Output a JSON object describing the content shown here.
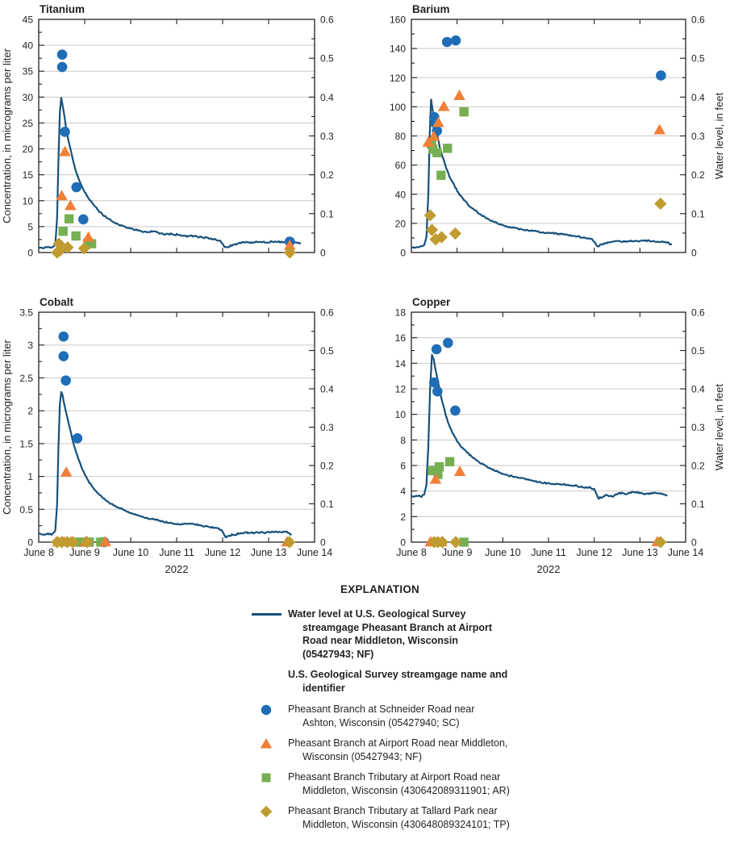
{
  "figure": {
    "explanation_title": "EXPLANATION",
    "water_level_legend": "Water level at U.S. Geological Survey streamgage Pheasant Branch at Airport Road near Middleton, Wisconsin (05427943; NF)",
    "streamgage_header": "U.S. Geological Survey streamgage name and identifier",
    "year_label": "2022"
  },
  "colors": {
    "water_line": "#16507a",
    "grid": "#c9c9c9",
    "axis": "#231f20",
    "text": "#231f20"
  },
  "sites": [
    {
      "key": "SC",
      "shape": "circle",
      "color": "#1f6db6",
      "label": "Pheasant Branch at Schneider Road near Ashton, Wisconsin (05427940; SC)"
    },
    {
      "key": "NF",
      "shape": "triangle",
      "color": "#f08038",
      "label": "Pheasant Branch at Airport Road near Middleton, Wisconsin (05427943; NF)"
    },
    {
      "key": "AR",
      "shape": "square",
      "color": "#76af52",
      "label": "Pheasant Branch Tributary at Airport Road near Middleton, Wisconsin (430642089311901; AR)"
    },
    {
      "key": "TP",
      "shape": "diamond",
      "color": "#bf9b30",
      "label": "Pheasant Branch Tributary at Tallard Park near Middleton, Wisconsin (430648089324101; TP)"
    }
  ],
  "axes": {
    "x_tick_labels": [
      "June 8",
      "June 9",
      "June 10",
      "June 11",
      "June 12",
      "June 13",
      "June 14"
    ],
    "x_range_days": [
      0,
      6
    ],
    "y_left_label": "Concentration, in micrograms per liter",
    "y_right_label": "Water level, in feet",
    "y_right": {
      "min": 0,
      "max": 0.6,
      "step": 0.1
    }
  },
  "chart_data": [
    {
      "type": "line+scatter",
      "title": "Titanium",
      "ylim": [
        0,
        45
      ],
      "ystep": 5,
      "scatter": {
        "SC": [
          [
            0.51,
            38.2
          ],
          [
            0.51,
            35.8
          ],
          [
            0.57,
            23.3
          ],
          [
            0.82,
            12.6
          ],
          [
            0.97,
            6.4
          ],
          [
            5.46,
            2.1
          ]
        ],
        "NF": [
          [
            0.5,
            10.9
          ],
          [
            0.57,
            19.4
          ],
          [
            0.69,
            9.0
          ],
          [
            1.08,
            2.9
          ],
          [
            5.46,
            1.3
          ]
        ],
        "AR": [
          [
            0.53,
            4.1
          ],
          [
            0.66,
            6.5
          ],
          [
            0.81,
            3.2
          ],
          [
            1.07,
            1.9
          ],
          [
            1.15,
            1.7
          ]
        ],
        "TP": [
          [
            0.4,
            0.0
          ],
          [
            0.44,
            1.7
          ],
          [
            0.47,
            0.4
          ],
          [
            0.63,
            1.0
          ],
          [
            0.99,
            0.8
          ],
          [
            5.46,
            0.0
          ]
        ]
      },
      "water_level_ft": [
        [
          0,
          0.013
        ],
        [
          0.1,
          0.012
        ],
        [
          0.2,
          0.014
        ],
        [
          0.3,
          0.013
        ],
        [
          0.36,
          0.02
        ],
        [
          0.4,
          0.09
        ],
        [
          0.43,
          0.24
        ],
        [
          0.46,
          0.36
        ],
        [
          0.49,
          0.396
        ],
        [
          0.52,
          0.378
        ],
        [
          0.56,
          0.35
        ],
        [
          0.6,
          0.315
        ],
        [
          0.65,
          0.287
        ],
        [
          0.7,
          0.262
        ],
        [
          0.75,
          0.235
        ],
        [
          0.8,
          0.212
        ],
        [
          0.86,
          0.192
        ],
        [
          0.93,
          0.172
        ],
        [
          1.0,
          0.156
        ],
        [
          1.1,
          0.137
        ],
        [
          1.2,
          0.121
        ],
        [
          1.32,
          0.105
        ],
        [
          1.45,
          0.092
        ],
        [
          1.6,
          0.08
        ],
        [
          1.75,
          0.071
        ],
        [
          1.9,
          0.065
        ],
        [
          2.05,
          0.06
        ],
        [
          2.2,
          0.056
        ],
        [
          2.35,
          0.052
        ],
        [
          2.5,
          0.055
        ],
        [
          2.6,
          0.05
        ],
        [
          2.75,
          0.047
        ],
        [
          2.9,
          0.048
        ],
        [
          3.05,
          0.045
        ],
        [
          3.2,
          0.042
        ],
        [
          3.35,
          0.043
        ],
        [
          3.5,
          0.04
        ],
        [
          3.65,
          0.038
        ],
        [
          3.8,
          0.035
        ],
        [
          3.95,
          0.03
        ],
        [
          4.05,
          0.012
        ],
        [
          4.2,
          0.018
        ],
        [
          4.35,
          0.024
        ],
        [
          4.5,
          0.027
        ],
        [
          4.65,
          0.025
        ],
        [
          4.8,
          0.028
        ],
        [
          4.95,
          0.026
        ],
        [
          5.1,
          0.028
        ],
        [
          5.25,
          0.027
        ],
        [
          5.4,
          0.029
        ],
        [
          5.55,
          0.026
        ],
        [
          5.7,
          0.024
        ]
      ]
    },
    {
      "type": "line+scatter",
      "title": "Barium",
      "ylim": [
        0,
        160
      ],
      "ystep": 20,
      "scatter": {
        "SC": [
          [
            0.5,
            93
          ],
          [
            0.53,
            88.5
          ],
          [
            0.56,
            83.5
          ],
          [
            0.78,
            144.5
          ],
          [
            0.97,
            145.5
          ],
          [
            5.46,
            121.5
          ]
        ],
        "NF": [
          [
            0.37,
            75.5
          ],
          [
            0.49,
            79.5
          ],
          [
            0.59,
            89
          ],
          [
            0.71,
            100
          ],
          [
            1.05,
            107.5
          ],
          [
            5.43,
            84
          ]
        ],
        "AR": [
          [
            0.44,
            74.5
          ],
          [
            0.47,
            71
          ],
          [
            0.56,
            68.5
          ],
          [
            0.79,
            71.5
          ],
          [
            0.65,
            53
          ],
          [
            1.15,
            96.5
          ]
        ],
        "TP": [
          [
            0.41,
            25.5
          ],
          [
            0.45,
            15.5
          ],
          [
            0.53,
            9
          ],
          [
            0.66,
            10.5
          ],
          [
            0.96,
            13
          ],
          [
            5.45,
            33.5
          ]
        ]
      },
      "water_level_ft": [
        [
          0,
          0.012
        ],
        [
          0.1,
          0.013
        ],
        [
          0.2,
          0.015
        ],
        [
          0.28,
          0.018
        ],
        [
          0.33,
          0.04
        ],
        [
          0.37,
          0.15
        ],
        [
          0.4,
          0.3
        ],
        [
          0.43,
          0.394
        ],
        [
          0.47,
          0.365
        ],
        [
          0.52,
          0.33
        ],
        [
          0.57,
          0.3
        ],
        [
          0.62,
          0.272
        ],
        [
          0.68,
          0.247
        ],
        [
          0.74,
          0.225
        ],
        [
          0.81,
          0.203
        ],
        [
          0.88,
          0.185
        ],
        [
          0.96,
          0.167
        ],
        [
          1.05,
          0.15
        ],
        [
          1.15,
          0.135
        ],
        [
          1.27,
          0.12
        ],
        [
          1.4,
          0.107
        ],
        [
          1.55,
          0.095
        ],
        [
          1.7,
          0.085
        ],
        [
          1.85,
          0.077
        ],
        [
          2.0,
          0.07
        ],
        [
          2.15,
          0.065
        ],
        [
          2.3,
          0.062
        ],
        [
          2.45,
          0.059
        ],
        [
          2.6,
          0.057
        ],
        [
          2.75,
          0.054
        ],
        [
          2.9,
          0.051
        ],
        [
          3.05,
          0.05
        ],
        [
          3.2,
          0.048
        ],
        [
          3.35,
          0.047
        ],
        [
          3.5,
          0.044
        ],
        [
          3.65,
          0.041
        ],
        [
          3.8,
          0.038
        ],
        [
          3.95,
          0.034
        ],
        [
          4.08,
          0.015
        ],
        [
          4.2,
          0.022
        ],
        [
          4.35,
          0.027
        ],
        [
          4.5,
          0.03
        ],
        [
          4.65,
          0.028
        ],
        [
          4.8,
          0.031
        ],
        [
          4.95,
          0.029
        ],
        [
          5.1,
          0.031
        ],
        [
          5.25,
          0.029
        ],
        [
          5.4,
          0.028
        ],
        [
          5.55,
          0.027
        ],
        [
          5.7,
          0.021
        ]
      ]
    },
    {
      "type": "line+scatter",
      "title": "Cobalt",
      "ylim": [
        0,
        3.5
      ],
      "ystep": 0.5,
      "scatter": {
        "SC": [
          [
            0.54,
            3.13
          ],
          [
            0.54,
            2.83
          ],
          [
            0.59,
            2.46
          ],
          [
            0.84,
            1.58
          ],
          [
            1.42,
            0
          ]
        ],
        "NF": [
          [
            0.6,
            1.06
          ],
          [
            0.42,
            0
          ],
          [
            0.55,
            0
          ],
          [
            0.7,
            0
          ],
          [
            1.02,
            0
          ],
          [
            1.45,
            0
          ],
          [
            5.4,
            0
          ]
        ],
        "AR": [
          [
            0.85,
            0
          ],
          [
            0.95,
            0
          ],
          [
            1.1,
            0
          ],
          [
            1.35,
            0
          ]
        ],
        "TP": [
          [
            0.4,
            0
          ],
          [
            0.5,
            0
          ],
          [
            0.62,
            0
          ],
          [
            0.74,
            0
          ],
          [
            1.05,
            0
          ],
          [
            5.45,
            0
          ]
        ]
      },
      "water_level_ft": [
        [
          0,
          0.022
        ],
        [
          0.1,
          0.02
        ],
        [
          0.2,
          0.022
        ],
        [
          0.3,
          0.021
        ],
        [
          0.36,
          0.03
        ],
        [
          0.4,
          0.1
        ],
        [
          0.43,
          0.25
        ],
        [
          0.46,
          0.36
        ],
        [
          0.49,
          0.391
        ],
        [
          0.52,
          0.382
        ],
        [
          0.56,
          0.357
        ],
        [
          0.61,
          0.33
        ],
        [
          0.67,
          0.3
        ],
        [
          0.73,
          0.27
        ],
        [
          0.79,
          0.243
        ],
        [
          0.86,
          0.218
        ],
        [
          0.93,
          0.196
        ],
        [
          1.0,
          0.177
        ],
        [
          1.1,
          0.156
        ],
        [
          1.2,
          0.14
        ],
        [
          1.32,
          0.124
        ],
        [
          1.45,
          0.11
        ],
        [
          1.6,
          0.098
        ],
        [
          1.75,
          0.089
        ],
        [
          1.9,
          0.081
        ],
        [
          2.05,
          0.074
        ],
        [
          2.2,
          0.068
        ],
        [
          2.35,
          0.063
        ],
        [
          2.5,
          0.059
        ],
        [
          2.65,
          0.055
        ],
        [
          2.8,
          0.051
        ],
        [
          2.95,
          0.048
        ],
        [
          3.1,
          0.046
        ],
        [
          3.25,
          0.049
        ],
        [
          3.4,
          0.046
        ],
        [
          3.55,
          0.043
        ],
        [
          3.7,
          0.04
        ],
        [
          3.85,
          0.037
        ],
        [
          3.97,
          0.032
        ],
        [
          4.07,
          0.013
        ],
        [
          4.2,
          0.019
        ],
        [
          4.35,
          0.022
        ],
        [
          4.5,
          0.025
        ],
        [
          4.65,
          0.024
        ],
        [
          4.8,
          0.026
        ],
        [
          4.95,
          0.025
        ],
        [
          5.1,
          0.028
        ],
        [
          5.25,
          0.026
        ],
        [
          5.4,
          0.026
        ],
        [
          5.5,
          0.019
        ]
      ]
    },
    {
      "type": "line+scatter",
      "title": "Copper",
      "ylim": [
        0,
        18
      ],
      "ystep": 2,
      "scatter": {
        "SC": [
          [
            0.5,
            12.5
          ],
          [
            0.55,
            15.1
          ],
          [
            0.57,
            11.8
          ],
          [
            0.8,
            15.6
          ],
          [
            0.96,
            10.3
          ]
        ],
        "NF": [
          [
            0.53,
            4.9
          ],
          [
            1.06,
            5.5
          ],
          [
            0.42,
            0
          ],
          [
            0.5,
            0
          ],
          [
            0.58,
            0
          ],
          [
            0.66,
            0
          ],
          [
            5.38,
            0
          ]
        ],
        "AR": [
          [
            0.46,
            5.6
          ],
          [
            0.58,
            5.3
          ],
          [
            0.61,
            5.9
          ],
          [
            0.84,
            6.3
          ],
          [
            1.15,
            0
          ]
        ],
        "TP": [
          [
            0.5,
            0
          ],
          [
            0.58,
            0
          ],
          [
            0.68,
            0
          ],
          [
            0.97,
            0
          ],
          [
            5.45,
            0
          ]
        ]
      },
      "water_level_ft": [
        [
          0,
          0.122
        ],
        [
          0.08,
          0.118
        ],
        [
          0.16,
          0.122
        ],
        [
          0.22,
          0.119
        ],
        [
          0.28,
          0.125
        ],
        [
          0.33,
          0.15
        ],
        [
          0.37,
          0.25
        ],
        [
          0.41,
          0.4
        ],
        [
          0.45,
          0.49
        ],
        [
          0.49,
          0.475
        ],
        [
          0.53,
          0.448
        ],
        [
          0.58,
          0.42
        ],
        [
          0.63,
          0.39
        ],
        [
          0.69,
          0.36
        ],
        [
          0.75,
          0.332
        ],
        [
          0.82,
          0.307
        ],
        [
          0.9,
          0.285
        ],
        [
          1.0,
          0.264
        ],
        [
          1.1,
          0.248
        ],
        [
          1.22,
          0.234
        ],
        [
          1.35,
          0.22
        ],
        [
          1.5,
          0.207
        ],
        [
          1.65,
          0.196
        ],
        [
          1.8,
          0.188
        ],
        [
          1.95,
          0.181
        ],
        [
          2.1,
          0.175
        ],
        [
          2.25,
          0.17
        ],
        [
          2.4,
          0.168
        ],
        [
          2.55,
          0.163
        ],
        [
          2.7,
          0.159
        ],
        [
          2.85,
          0.156
        ],
        [
          3.0,
          0.153
        ],
        [
          3.15,
          0.152
        ],
        [
          3.3,
          0.151
        ],
        [
          3.45,
          0.149
        ],
        [
          3.6,
          0.147
        ],
        [
          3.75,
          0.144
        ],
        [
          3.9,
          0.142
        ],
        [
          4.0,
          0.138
        ],
        [
          4.1,
          0.114
        ],
        [
          4.25,
          0.122
        ],
        [
          4.4,
          0.12
        ],
        [
          4.55,
          0.128
        ],
        [
          4.7,
          0.126
        ],
        [
          4.85,
          0.13
        ],
        [
          5.0,
          0.128
        ],
        [
          5.15,
          0.126
        ],
        [
          5.3,
          0.129
        ],
        [
          5.45,
          0.127
        ],
        [
          5.6,
          0.123
        ]
      ]
    }
  ]
}
